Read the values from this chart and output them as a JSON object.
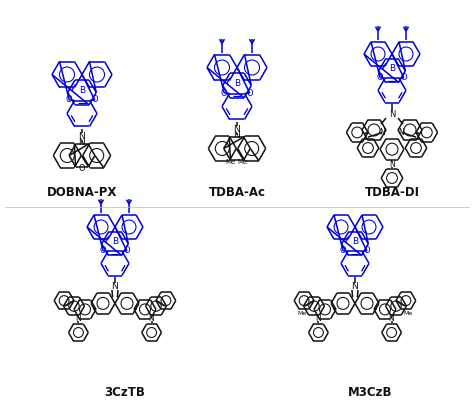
{
  "background_color": "#ffffff",
  "labels": [
    "DOBNA-PX",
    "TDBA-Ac",
    "TDBA-DI",
    "3CzTB",
    "M3CzB"
  ],
  "label_fontsize": 8.5,
  "label_fontweight": "bold",
  "blue": "#0000cc",
  "black": "#111111",
  "figsize": [
    4.74,
    4.04
  ],
  "dpi": 100
}
